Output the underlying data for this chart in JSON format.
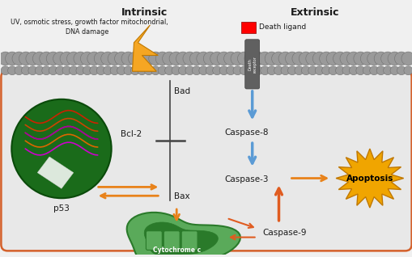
{
  "bg_color": "#f0f0f0",
  "cell_bg": "#e8e8e8",
  "cell_border_color": "#d4602a",
  "membrane_color": "#9a9a9a",
  "intrinsic_label": "Intrinsic",
  "extrinsic_label": "Extrinsic",
  "death_ligand_label": "Death ligand",
  "arrow_orange": "#e8821a",
  "arrow_blue": "#5b9bd5",
  "arrow_red_orange": "#e05c20",
  "nucleus_green": "#1a6b1a",
  "mito_outer": "#2a7a2a",
  "mito_inner": "#5aaa5a",
  "lightning_fill": "#f5a623",
  "lightning_edge": "#c07800",
  "receptor_color": "#606060",
  "starburst_fill": "#f0a500",
  "starburst_edge": "#c07800"
}
